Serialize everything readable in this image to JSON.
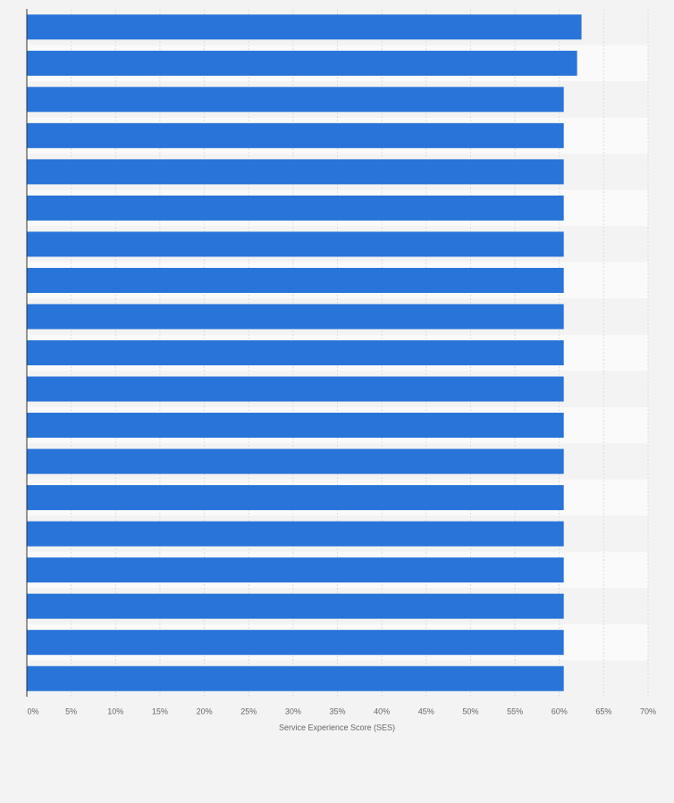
{
  "chart_data": {
    "type": "bar",
    "orientation": "horizontal",
    "x_label": "Service Experience Score (SES)",
    "categories": [
      null,
      null,
      null,
      null,
      null,
      null,
      null,
      null,
      null,
      null,
      null,
      null,
      null,
      null,
      null,
      null,
      null,
      null,
      null
    ],
    "values": [
      62.5,
      62,
      60.5,
      60.5,
      60.5,
      60.5,
      60.5,
      60.5,
      60.5,
      60.5,
      60.5,
      60.5,
      60.5,
      60.5,
      60.5,
      60.5,
      60.5,
      60.5,
      60.5
    ],
    "color": "#2874d9",
    "xlim": [
      0,
      70
    ],
    "xticks": [
      {
        "value": 0,
        "label": "0%"
      },
      {
        "value": 5,
        "label": "5%"
      },
      {
        "value": 10,
        "label": "10%"
      },
      {
        "value": 15,
        "label": "15%"
      },
      {
        "value": 20,
        "label": "20%"
      },
      {
        "value": 25,
        "label": "25%"
      },
      {
        "value": 30,
        "label": "30%"
      },
      {
        "value": 35,
        "label": "35%"
      },
      {
        "value": 40,
        "label": "40%"
      },
      {
        "value": 45,
        "label": "45%"
      },
      {
        "value": 50,
        "label": "50%"
      },
      {
        "value": 55,
        "label": "55%"
      },
      {
        "value": 60,
        "label": "60%"
      },
      {
        "value": 65,
        "label": "65%"
      },
      {
        "value": 70,
        "label": "70%"
      }
    ],
    "grid": true
  }
}
